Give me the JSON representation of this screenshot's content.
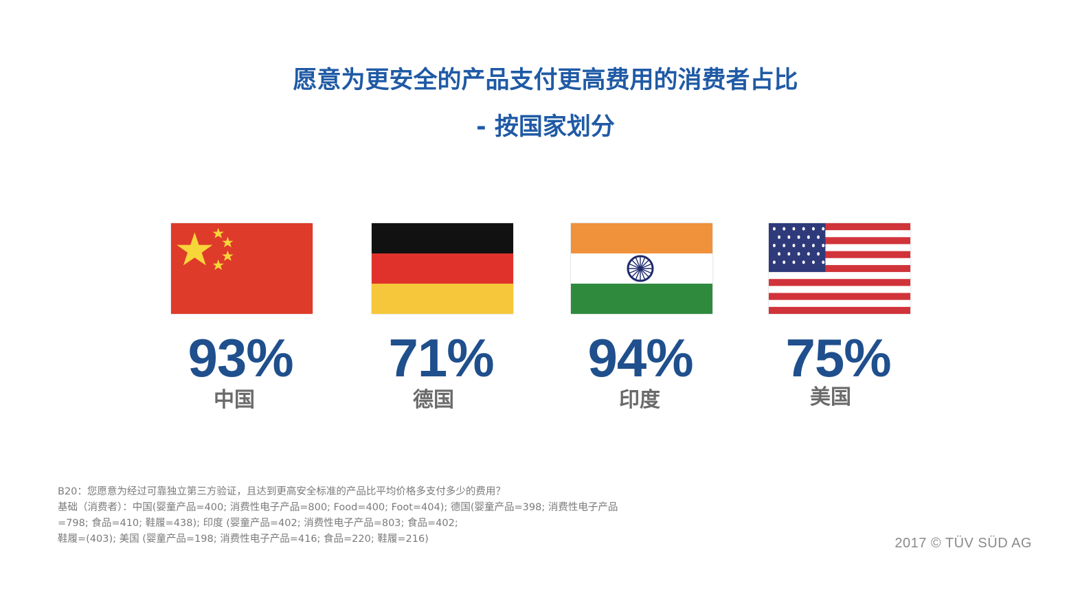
{
  "title_line1": "愿意为更安全的产品支付更高费用的消费者占比",
  "title_line2": "- 按国家划分",
  "chart_data": {
    "type": "bar",
    "title": "愿意为更安全的产品支付更高费用的消费者占比 - 按国家划分",
    "categories": [
      "中国",
      "德国",
      "印度",
      "美国"
    ],
    "values": [
      93,
      71,
      94,
      75
    ],
    "value_labels": [
      "93%",
      "71%",
      "94%",
      "75%"
    ],
    "unit": "%"
  },
  "countries": [
    {
      "name": "中国",
      "value_label": "93%",
      "flag": "china-flag"
    },
    {
      "name": "德国",
      "value_label": "71%",
      "flag": "germany-flag"
    },
    {
      "name": "印度",
      "value_label": "94%",
      "flag": "india-flag"
    },
    {
      "name": "美国",
      "value_label": "75%",
      "flag": "usa-flag"
    }
  ],
  "colors": {
    "title": "#1f5aa5",
    "percentage": "#1f4f8c",
    "country_name": "#6a6a6a"
  },
  "footnote": {
    "line1": "B20：您愿意为经过可靠独立第三方验证，且达到更高安全标准的产品比平均价格多支付多少的费用？",
    "line2": "基础（消费者）：中国(婴童产品=400; 消费性电子产品=800; Food=400; Foot=404); 德国(婴童产品=398; 消费性电子产品",
    "line3": "=798; 食品=410; 鞋履=438); 印度 (婴童产品=402; 消费性电子产品=803; 食品=402;",
    "line4": "鞋履=(403); 美国 (婴童产品=198; 消费性电子产品=416; 食品=220; 鞋履=216)"
  },
  "copyright": "2017 © TÜV SÜD AG"
}
